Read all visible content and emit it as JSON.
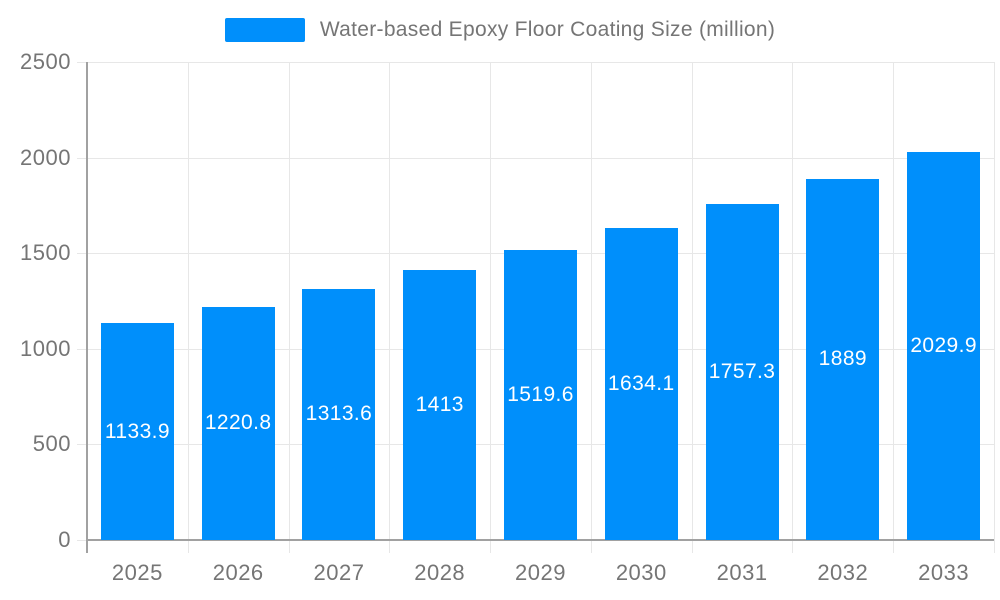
{
  "chart_data": {
    "type": "bar",
    "title": "Water-based Epoxy Floor Coating Size (million)",
    "categories": [
      "2025",
      "2026",
      "2027",
      "2028",
      "2029",
      "2030",
      "2031",
      "2032",
      "2033"
    ],
    "values": [
      1133.9,
      1220.8,
      1313.6,
      1413,
      1519.6,
      1634.1,
      1757.3,
      1889,
      2029.9
    ],
    "value_labels": [
      "1133.9",
      "1220.8",
      "1313.6",
      "1413",
      "1519.6",
      "1634.1",
      "1757.3",
      "1889",
      "2029.9"
    ],
    "xlabel": "",
    "ylabel": "",
    "ylim": [
      0,
      2500
    ],
    "yticks": [
      0,
      500,
      1000,
      1500,
      2000,
      2500
    ],
    "ytick_labels": [
      "0",
      "500",
      "1000",
      "1500",
      "2000",
      "2500"
    ],
    "grid": true,
    "legend_position": "top",
    "colors": {
      "bar": "#008ffb",
      "grid": "#e7e7e7",
      "axis": "#a1a1a1",
      "tick_label": "#757575",
      "value_label": "#ffffff",
      "background": "#ffffff"
    }
  }
}
